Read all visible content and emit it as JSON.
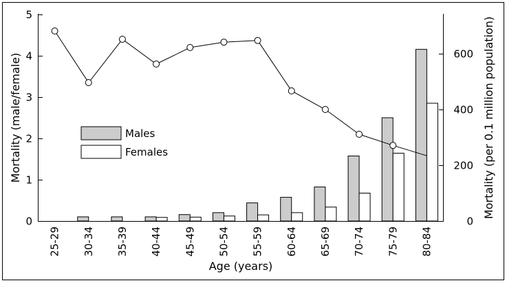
{
  "chart_data": {
    "type": "bar",
    "categories": [
      "25-29",
      "30-34",
      "35-39",
      "40-44",
      "45-49",
      "50-54",
      "55-59",
      "60-64",
      "65-69",
      "70-74",
      "75-79",
      "80-84"
    ],
    "series": [
      {
        "name": "Males",
        "axis": "right",
        "render": "bar",
        "color": "#cccccc",
        "values": [
          0,
          15,
          15,
          15,
          23,
          30,
          65,
          85,
          122,
          233,
          370,
          615
        ]
      },
      {
        "name": "Females",
        "axis": "right",
        "render": "bar",
        "color": "#ffffff",
        "values": [
          0,
          0,
          0,
          13,
          14,
          18,
          22,
          30,
          50,
          100,
          243,
          422
        ]
      },
      {
        "name": "",
        "axis": "left",
        "render": "line-markers",
        "color": "#000000",
        "values": [
          4.6,
          3.35,
          4.4,
          3.8,
          4.2,
          4.33,
          4.37,
          3.15,
          2.7,
          2.1,
          1.83,
          1.58
        ]
      }
    ],
    "title": "",
    "xlabel": "Age (years)",
    "ylabel_left": "Mortality (male/female)",
    "ylabel_right": "Mortality (per 0.1 million population)",
    "ylim_left": [
      0,
      5
    ],
    "ylim_right": [
      0,
      740
    ],
    "yticks_left": [
      "0",
      "1",
      "2",
      "3",
      "4",
      "5"
    ],
    "yticks_left_values": [
      0,
      1,
      2,
      3,
      4,
      5
    ],
    "yticks_right": [
      "0",
      "200",
      "400",
      "600"
    ],
    "yticks_right_values": [
      0,
      200,
      400,
      600
    ],
    "grid": false,
    "legend": {
      "position": "left-center",
      "entries": [
        "Males",
        "Females"
      ]
    }
  }
}
